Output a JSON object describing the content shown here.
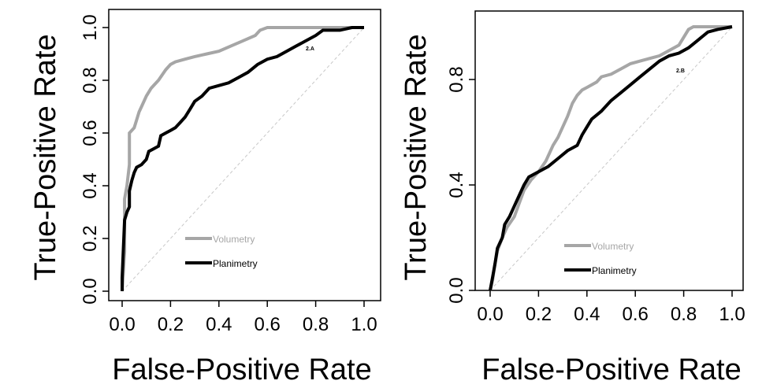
{
  "colors": {
    "volumetry": "#a6a6a6",
    "planimetry": "#000000",
    "diagonal": "#c8c8c8",
    "axis": "#000000"
  },
  "chart_data": [
    {
      "type": "line",
      "panel_label": "2.A",
      "xlabel": "False-Positive Rate",
      "ylabel": "True-Positive Rate",
      "xlim": [
        0,
        1
      ],
      "ylim": [
        0,
        1
      ],
      "xticks": [
        "0.0",
        "0.2",
        "0.4",
        "0.6",
        "0.8",
        "1.0"
      ],
      "yticks": [
        "0.0",
        "0.2",
        "0.4",
        "0.6",
        "0.8",
        "1.0"
      ],
      "grid": false,
      "reference_line": "diagonal",
      "legend": {
        "position": "bottom-center",
        "entries": [
          "Volumetry",
          "Planimetry"
        ]
      },
      "series": [
        {
          "name": "Volumetry",
          "points": [
            [
              0,
              0
            ],
            [
              0.01,
              0.15
            ],
            [
              0.01,
              0.35
            ],
            [
              0.02,
              0.4
            ],
            [
              0.03,
              0.48
            ],
            [
              0.03,
              0.55
            ],
            [
              0.03,
              0.6
            ],
            [
              0.05,
              0.62
            ],
            [
              0.06,
              0.65
            ],
            [
              0.07,
              0.68
            ],
            [
              0.08,
              0.7
            ],
            [
              0.1,
              0.74
            ],
            [
              0.12,
              0.77
            ],
            [
              0.15,
              0.8
            ],
            [
              0.18,
              0.84
            ],
            [
              0.2,
              0.86
            ],
            [
              0.22,
              0.87
            ],
            [
              0.26,
              0.88
            ],
            [
              0.3,
              0.89
            ],
            [
              0.35,
              0.9
            ],
            [
              0.4,
              0.91
            ],
            [
              0.45,
              0.93
            ],
            [
              0.5,
              0.95
            ],
            [
              0.55,
              0.97
            ],
            [
              0.57,
              0.99
            ],
            [
              0.6,
              1.0
            ],
            [
              0.7,
              1.0
            ],
            [
              0.8,
              1.0
            ],
            [
              1,
              1
            ]
          ]
        },
        {
          "name": "Planimetry",
          "points": [
            [
              0,
              0
            ],
            [
              0.0,
              0.05
            ],
            [
              0.01,
              0.27
            ],
            [
              0.02,
              0.3
            ],
            [
              0.03,
              0.32
            ],
            [
              0.03,
              0.38
            ],
            [
              0.04,
              0.42
            ],
            [
              0.05,
              0.45
            ],
            [
              0.06,
              0.47
            ],
            [
              0.08,
              0.48
            ],
            [
              0.1,
              0.5
            ],
            [
              0.11,
              0.53
            ],
            [
              0.13,
              0.54
            ],
            [
              0.15,
              0.55
            ],
            [
              0.16,
              0.59
            ],
            [
              0.18,
              0.6
            ],
            [
              0.2,
              0.61
            ],
            [
              0.22,
              0.62
            ],
            [
              0.24,
              0.64
            ],
            [
              0.26,
              0.66
            ],
            [
              0.28,
              0.69
            ],
            [
              0.3,
              0.72
            ],
            [
              0.33,
              0.74
            ],
            [
              0.36,
              0.77
            ],
            [
              0.4,
              0.78
            ],
            [
              0.44,
              0.79
            ],
            [
              0.48,
              0.81
            ],
            [
              0.52,
              0.83
            ],
            [
              0.56,
              0.86
            ],
            [
              0.6,
              0.88
            ],
            [
              0.64,
              0.89
            ],
            [
              0.68,
              0.91
            ],
            [
              0.72,
              0.93
            ],
            [
              0.76,
              0.95
            ],
            [
              0.8,
              0.97
            ],
            [
              0.83,
              0.99
            ],
            [
              0.85,
              0.99
            ],
            [
              0.9,
              0.99
            ],
            [
              0.95,
              1.0
            ],
            [
              1,
              1
            ]
          ]
        }
      ]
    },
    {
      "type": "line",
      "panel_label": "2.B",
      "xlabel": "False-Positive Rate",
      "ylabel": "True-Positive Rate",
      "xlim": [
        0,
        1
      ],
      "ylim": [
        0,
        1
      ],
      "xticks": [
        "0.0",
        "0.2",
        "0.4",
        "0.6",
        "0.8",
        "1.0"
      ],
      "yticks": [
        "0.0",
        "0.4",
        "0.8"
      ],
      "grid": false,
      "reference_line": "diagonal",
      "legend": {
        "position": "bottom-center",
        "entries": [
          "Volumetry",
          "Planimetry"
        ]
      },
      "series": [
        {
          "name": "Volumetry",
          "points": [
            [
              0,
              0
            ],
            [
              0.01,
              0.04
            ],
            [
              0.02,
              0.1
            ],
            [
              0.03,
              0.15
            ],
            [
              0.05,
              0.2
            ],
            [
              0.07,
              0.24
            ],
            [
              0.1,
              0.28
            ],
            [
              0.12,
              0.33
            ],
            [
              0.14,
              0.38
            ],
            [
              0.17,
              0.42
            ],
            [
              0.2,
              0.45
            ],
            [
              0.23,
              0.49
            ],
            [
              0.26,
              0.55
            ],
            [
              0.28,
              0.58
            ],
            [
              0.3,
              0.62
            ],
            [
              0.32,
              0.66
            ],
            [
              0.34,
              0.71
            ],
            [
              0.36,
              0.74
            ],
            [
              0.38,
              0.76
            ],
            [
              0.4,
              0.77
            ],
            [
              0.42,
              0.78
            ],
            [
              0.44,
              0.79
            ],
            [
              0.46,
              0.81
            ],
            [
              0.5,
              0.82
            ],
            [
              0.54,
              0.84
            ],
            [
              0.58,
              0.86
            ],
            [
              0.62,
              0.87
            ],
            [
              0.66,
              0.88
            ],
            [
              0.7,
              0.89
            ],
            [
              0.74,
              0.91
            ],
            [
              0.78,
              0.93
            ],
            [
              0.8,
              0.96
            ],
            [
              0.82,
              0.99
            ],
            [
              0.84,
              1.0
            ],
            [
              0.9,
              1.0
            ],
            [
              1,
              1
            ]
          ]
        },
        {
          "name": "Planimetry",
          "points": [
            [
              0,
              0
            ],
            [
              0.01,
              0.05
            ],
            [
              0.02,
              0.1
            ],
            [
              0.03,
              0.16
            ],
            [
              0.05,
              0.2
            ],
            [
              0.06,
              0.25
            ],
            [
              0.08,
              0.28
            ],
            [
              0.1,
              0.32
            ],
            [
              0.12,
              0.36
            ],
            [
              0.14,
              0.4
            ],
            [
              0.16,
              0.43
            ],
            [
              0.2,
              0.45
            ],
            [
              0.24,
              0.47
            ],
            [
              0.28,
              0.5
            ],
            [
              0.32,
              0.53
            ],
            [
              0.36,
              0.55
            ],
            [
              0.38,
              0.59
            ],
            [
              0.4,
              0.62
            ],
            [
              0.42,
              0.65
            ],
            [
              0.46,
              0.68
            ],
            [
              0.5,
              0.72
            ],
            [
              0.54,
              0.75
            ],
            [
              0.58,
              0.78
            ],
            [
              0.62,
              0.81
            ],
            [
              0.66,
              0.84
            ],
            [
              0.7,
              0.87
            ],
            [
              0.74,
              0.89
            ],
            [
              0.78,
              0.9
            ],
            [
              0.82,
              0.92
            ],
            [
              0.86,
              0.95
            ],
            [
              0.9,
              0.98
            ],
            [
              0.94,
              0.99
            ],
            [
              1,
              1
            ]
          ]
        }
      ]
    }
  ]
}
